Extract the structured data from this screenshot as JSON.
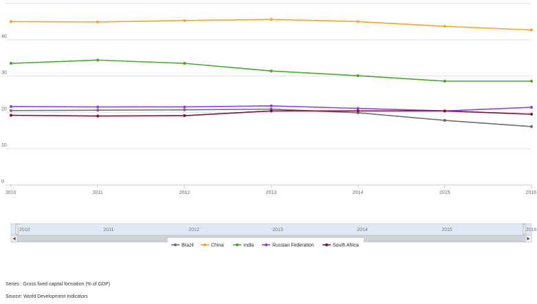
{
  "chart_data": {
    "type": "line",
    "title": "",
    "xlabel": "",
    "ylabel": "",
    "x": [
      "2010",
      "2011",
      "2012",
      "2013",
      "2014",
      "2015",
      "2016"
    ],
    "ylim": [
      0,
      50
    ],
    "yticks": [
      "0",
      "10",
      "20",
      "30",
      "40"
    ],
    "grid": true,
    "legend_position": "bottom",
    "series": [
      {
        "name": "Brazil",
        "color": "#6d6d6d",
        "values": [
          20.5,
          20.6,
          20.7,
          20.9,
          19.9,
          17.8,
          16.1
        ]
      },
      {
        "name": "China",
        "color": "#f5a623",
        "values": [
          45.0,
          44.9,
          45.3,
          45.6,
          45.0,
          43.7,
          42.7
        ]
      },
      {
        "name": "India",
        "color": "#4aa52e",
        "values": [
          33.5,
          34.4,
          33.5,
          31.4,
          30.1,
          28.6,
          28.6
        ]
      },
      {
        "name": "Russian Federation",
        "color": "#8a3ffc",
        "values": [
          21.6,
          21.5,
          21.5,
          21.8,
          21.1,
          20.4,
          21.4
        ]
      },
      {
        "name": "South Africa",
        "color": "#7a0f3a",
        "values": [
          19.2,
          19.0,
          19.1,
          20.4,
          20.4,
          20.4,
          19.5
        ]
      }
    ]
  },
  "navigator": {
    "labels": [
      "2010",
      "2011",
      "2012",
      "2013",
      "2014",
      "2015",
      "2016"
    ],
    "scroll_left_icon": "arrow-left-icon",
    "scroll_right_icon": "arrow-right-icon"
  },
  "footer": {
    "series_text": "Series : Gross fixed capital formation (% of GDP)",
    "source_text": "Source: World Development Indicators"
  }
}
